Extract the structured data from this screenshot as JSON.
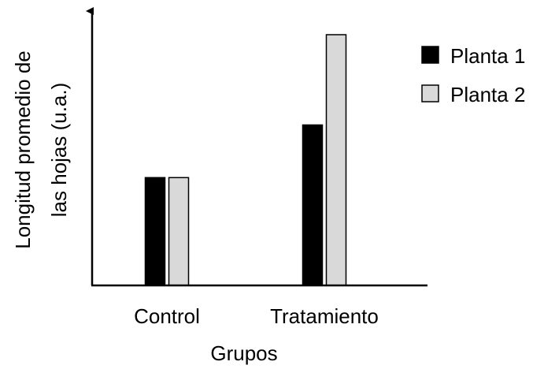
{
  "chart_data": {
    "type": "bar",
    "title": "",
    "categories": [
      "Control",
      "Tratamiento"
    ],
    "series": [
      {
        "name": "Planta 1",
        "values": [
          4.3,
          6.4
        ],
        "color": "#000000"
      },
      {
        "name": "Planta 2",
        "values": [
          4.3,
          10.0
        ],
        "color": "#d9d9d9"
      }
    ],
    "xlabel": "Grupos",
    "ylabel_lines": [
      "Longitud promedio de",
      "las hojas (u.a.)"
    ],
    "ylim": [
      0,
      11.5
    ],
    "y_ticks_shown": false,
    "grid": false,
    "legend_position": "top-right"
  }
}
